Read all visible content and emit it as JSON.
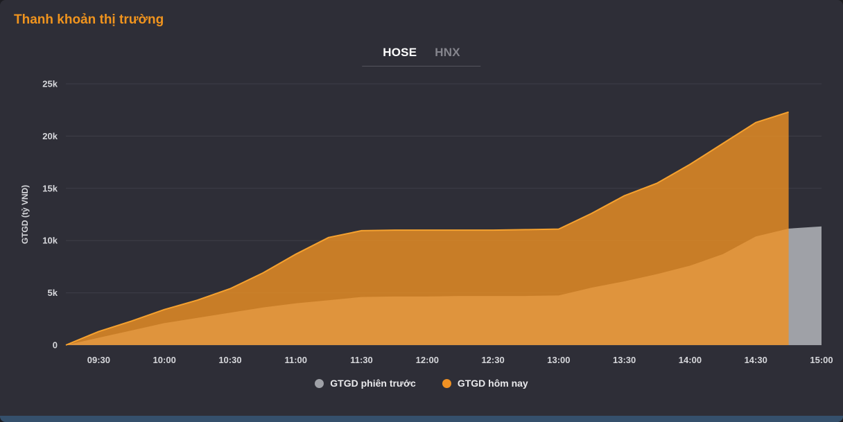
{
  "panel": {
    "title": "Thanh khoản thị trường",
    "accent_color": "#f0941e",
    "background": "#2e2e37"
  },
  "tabs": [
    {
      "label": "HOSE",
      "active": true
    },
    {
      "label": "HNX",
      "active": false
    }
  ],
  "legend": [
    {
      "label": "GTGD phiên trước",
      "color": "#9fa1a7"
    },
    {
      "label": "GTGD hôm nay",
      "color": "#f09123"
    }
  ],
  "chart_data": {
    "type": "area",
    "title": "Thanh khoản thị trường",
    "xlabel": "",
    "ylabel": "GTGD (tỷ VND)",
    "ylim": [
      0,
      25000
    ],
    "grid": true,
    "grid_color": "#3f3f49",
    "tick_color": "#d6d7db",
    "legend_position": "bottom",
    "yticks": [
      {
        "v": 0,
        "label": "0"
      },
      {
        "v": 5000,
        "label": "5k"
      },
      {
        "v": 10000,
        "label": "10k"
      },
      {
        "v": 15000,
        "label": "15k"
      },
      {
        "v": 20000,
        "label": "20k"
      },
      {
        "v": 25000,
        "label": "25k"
      }
    ],
    "xticks": [
      {
        "m": 570,
        "label": "09:30"
      },
      {
        "m": 600,
        "label": "10:00"
      },
      {
        "m": 630,
        "label": "10:30"
      },
      {
        "m": 660,
        "label": "11:00"
      },
      {
        "m": 690,
        "label": "11:30"
      },
      {
        "m": 720,
        "label": "12:00"
      },
      {
        "m": 750,
        "label": "12:30"
      },
      {
        "m": 780,
        "label": "13:00"
      },
      {
        "m": 810,
        "label": "13:30"
      },
      {
        "m": 840,
        "label": "14:00"
      },
      {
        "m": 870,
        "label": "14:30"
      },
      {
        "m": 900,
        "label": "15:00"
      }
    ],
    "x_minutes": [
      555,
      570,
      585,
      600,
      615,
      630,
      645,
      660,
      675,
      690,
      705,
      720,
      735,
      750,
      765,
      780,
      795,
      810,
      825,
      840,
      855,
      870,
      885,
      900
    ],
    "series": [
      {
        "name": "GTGD phiên trước",
        "color": "#9fa1a7",
        "fill_opacity": 1,
        "line_color": "#a8aab0",
        "values": [
          0,
          700,
          1400,
          2100,
          2600,
          3100,
          3600,
          4000,
          4300,
          4600,
          4650,
          4650,
          4700,
          4700,
          4700,
          4750,
          5500,
          6100,
          6800,
          7600,
          8700,
          10400,
          11150,
          11350
        ]
      },
      {
        "name": "GTGD hôm nay",
        "color": "#ef9123",
        "fill_opacity": 0.8,
        "line_color": "#f6a22f",
        "values": [
          0,
          1300,
          2300,
          3400,
          4300,
          5400,
          6900,
          8700,
          10300,
          10950,
          11000,
          11000,
          11000,
          11000,
          11050,
          11100,
          12600,
          14300,
          15500,
          17300,
          19300,
          21300,
          22300,
          null
        ]
      }
    ]
  }
}
